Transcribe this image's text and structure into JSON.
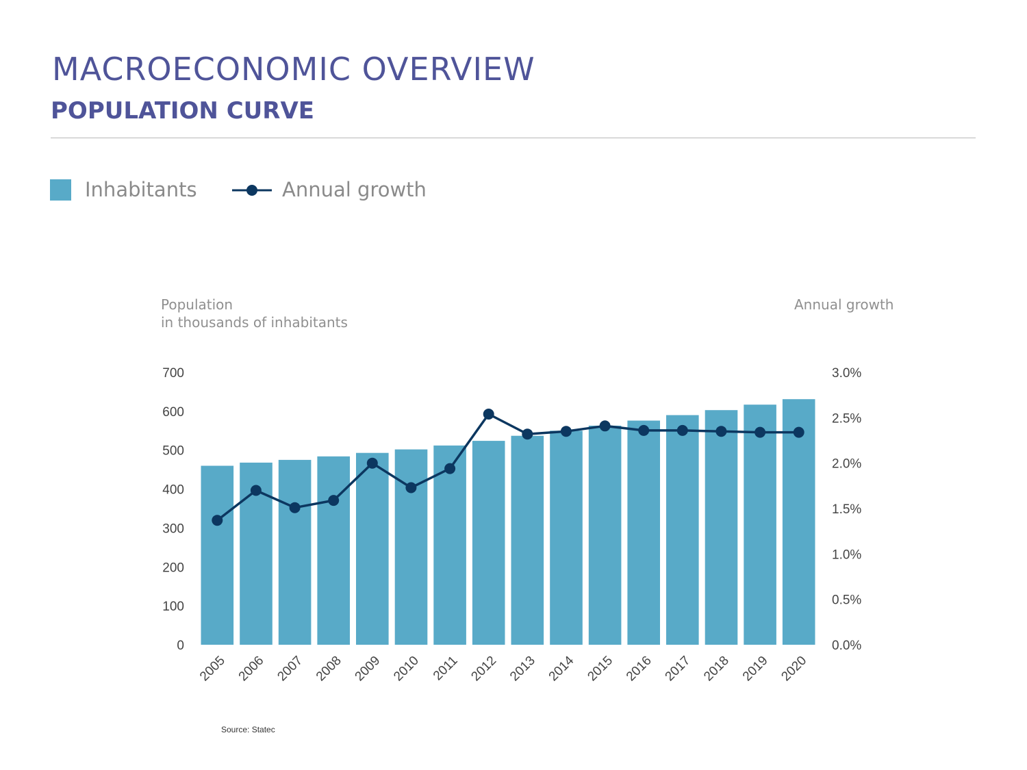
{
  "header": {
    "title": "MACROECONOMIC OVERVIEW",
    "subtitle": "POPULATION CURVE"
  },
  "legend": {
    "bars_label": "Inhabitants",
    "line_label": "Annual growth"
  },
  "colors": {
    "bar": "#58aac8",
    "line": "#0c3760",
    "title": "#4f5499"
  },
  "source": "Source: Statec",
  "chart_data": {
    "type": "bar",
    "title": "",
    "categories": [
      "2005",
      "2006",
      "2007",
      "2008",
      "2009",
      "2010",
      "2011",
      "2012",
      "2013",
      "2014",
      "2015",
      "2016",
      "2017",
      "2018",
      "2019",
      "2020"
    ],
    "ylabel_left": "Population\nin thousands of inhabitants",
    "ylabel_left_lines": [
      "Population",
      "in thousands of inhabitants"
    ],
    "ylabel_right": "Annual growth",
    "ylim_left": [
      0,
      700
    ],
    "ylim_right": [
      0,
      0.03
    ],
    "left_ticks": [
      "0",
      "100",
      "200",
      "300",
      "400",
      "500",
      "600",
      "700"
    ],
    "right_ticks": [
      "0.0%",
      "0.5%",
      "1.0%",
      "1.5%",
      "2.0%",
      "2.5%",
      "3.0%"
    ],
    "grid": false,
    "legend_position": "top-left",
    "series": [
      {
        "name": "Inhabitants",
        "type": "bar",
        "axis": "left",
        "values": [
          460,
          468,
          475,
          484,
          493,
          502,
          512,
          524,
          537,
          550,
          563,
          576,
          590,
          603,
          617,
          631
        ]
      },
      {
        "name": "Annual growth",
        "type": "line",
        "axis": "right",
        "values": [
          0.0137,
          0.017,
          0.0151,
          0.0159,
          0.02,
          0.0173,
          0.0194,
          0.0254,
          0.0232,
          0.0235,
          0.0241,
          0.0236,
          0.0236,
          0.0235,
          0.0234,
          0.0234
        ]
      }
    ]
  }
}
